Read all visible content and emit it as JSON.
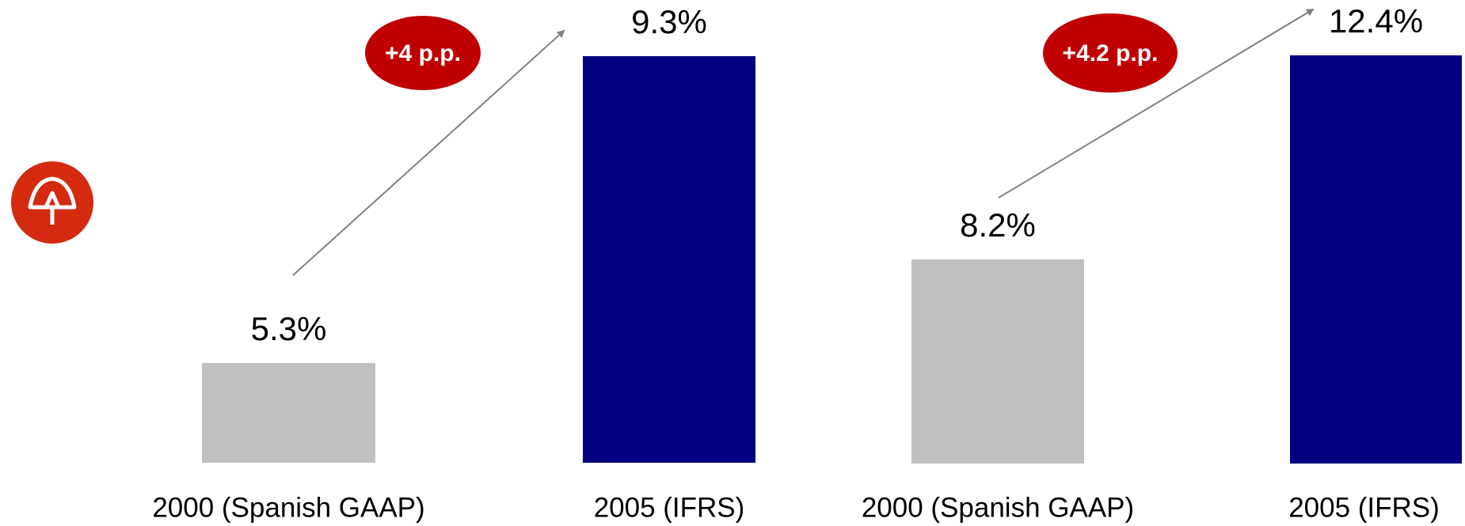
{
  "chart_data": [
    {
      "type": "bar",
      "categories": [
        "2000 (Spanish GAAP)",
        "2005 (IFRS)"
      ],
      "values": [
        5.3,
        9.3
      ],
      "value_labels": [
        "5.3%",
        "9.3%"
      ],
      "colors": [
        "#c0c0c0",
        "#000080"
      ],
      "ylim": [
        4,
        9.3
      ],
      "annotation": "+4 p.p."
    },
    {
      "type": "bar",
      "categories": [
        "2000 (Spanish GAAP)",
        "2005 (IFRS)"
      ],
      "values": [
        8.2,
        12.4
      ],
      "value_labels": [
        "8.2%",
        "12.4%"
      ],
      "colors": [
        "#c0c0c0",
        "#000080"
      ],
      "ylim": [
        4,
        12.4
      ],
      "annotation": "+4.2 p.p."
    }
  ]
}
